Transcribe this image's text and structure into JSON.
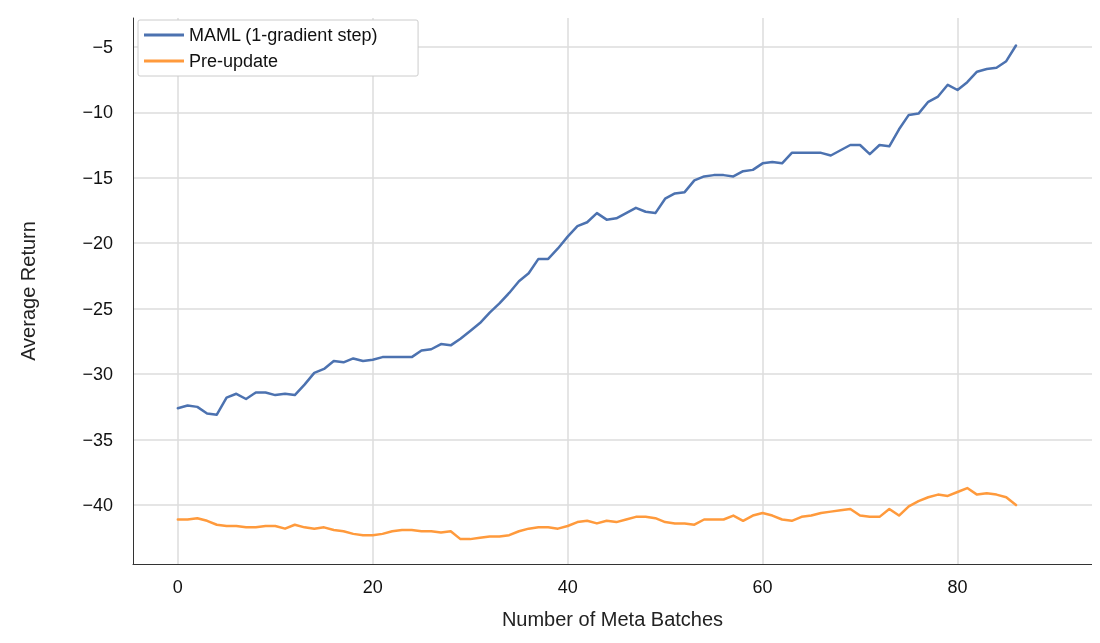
{
  "chart_data": {
    "type": "line",
    "xlabel": "Number of Meta Batches",
    "ylabel": "Average Return",
    "x": [
      0,
      1,
      2,
      3,
      4,
      5,
      6,
      7,
      8,
      9,
      10,
      11,
      12,
      13,
      14,
      15,
      16,
      17,
      18,
      19,
      20,
      21,
      22,
      23,
      24,
      25,
      26,
      27,
      28,
      29,
      30,
      31,
      32,
      33,
      34,
      35,
      36,
      37,
      38,
      39,
      40,
      41,
      42,
      43,
      44,
      45,
      46,
      47,
      48,
      49,
      50,
      51,
      52,
      53,
      54,
      55,
      56,
      57,
      58,
      59,
      60,
      61,
      62,
      63,
      64,
      65,
      66,
      67,
      68,
      69,
      70,
      71,
      72,
      73,
      74,
      75,
      76,
      77,
      78,
      79,
      80,
      81,
      82,
      83,
      84,
      85,
      86
    ],
    "series": [
      {
        "name": "MAML (1-gradient step)",
        "color": "#4c72b0",
        "values": [
          -32.6,
          -32.4,
          -32.5,
          -33.0,
          -33.1,
          -31.8,
          -31.5,
          -31.9,
          -31.4,
          -31.4,
          -31.6,
          -31.5,
          -31.6,
          -30.8,
          -29.9,
          -29.6,
          -29.0,
          -29.1,
          -28.8,
          -29.0,
          -28.9,
          -28.7,
          -28.7,
          -28.7,
          -28.7,
          -28.2,
          -28.1,
          -27.7,
          -27.8,
          -27.3,
          -26.7,
          -26.1,
          -25.3,
          -24.6,
          -23.8,
          -22.9,
          -22.3,
          -21.2,
          -21.2,
          -20.4,
          -19.5,
          -18.7,
          -18.4,
          -17.7,
          -18.2,
          -18.1,
          -17.7,
          -17.3,
          -17.6,
          -17.7,
          -16.6,
          -16.2,
          -16.1,
          -15.2,
          -14.9,
          -14.8,
          -14.8,
          -14.9,
          -14.5,
          -14.4,
          -13.9,
          -13.8,
          -13.9,
          -13.1,
          -13.1,
          -13.1,
          -13.1,
          -13.3,
          -12.9,
          -12.5,
          -12.5,
          -13.2,
          -12.5,
          -12.6,
          -11.3,
          -10.2,
          -10.1,
          -9.2,
          -8.8,
          -7.9,
          -8.3,
          -7.7,
          -6.9,
          -6.7,
          -6.6,
          -6.1,
          -4.9
        ]
      },
      {
        "name": "Pre-update",
        "color": "#ff9a3c",
        "values": [
          -41.1,
          -41.1,
          -41.0,
          -41.2,
          -41.5,
          -41.6,
          -41.6,
          -41.7,
          -41.7,
          -41.6,
          -41.6,
          -41.8,
          -41.5,
          -41.7,
          -41.8,
          -41.7,
          -41.9,
          -42.0,
          -42.2,
          -42.3,
          -42.3,
          -42.2,
          -42.0,
          -41.9,
          -41.9,
          -42.0,
          -42.0,
          -42.1,
          -42.0,
          -42.6,
          -42.6,
          -42.5,
          -42.4,
          -42.4,
          -42.3,
          -42.0,
          -41.8,
          -41.7,
          -41.7,
          -41.8,
          -41.6,
          -41.3,
          -41.2,
          -41.4,
          -41.2,
          -41.3,
          -41.1,
          -40.9,
          -40.9,
          -41.0,
          -41.3,
          -41.4,
          -41.4,
          -41.5,
          -41.1,
          -41.1,
          -41.1,
          -40.8,
          -41.2,
          -40.8,
          -40.6,
          -40.8,
          -41.1,
          -41.2,
          -40.9,
          -40.8,
          -40.6,
          -40.5,
          -40.4,
          -40.3,
          -40.8,
          -40.9,
          -40.9,
          -40.3,
          -40.8,
          -40.1,
          -39.7,
          -39.4,
          -39.2,
          -39.3,
          -39.0,
          -38.7,
          -39.2,
          -39.1,
          -39.2,
          -39.4,
          -40.0
        ]
      }
    ],
    "xlim": [
      -4.6,
      93.8
    ],
    "xticks": [
      0,
      20,
      40,
      60,
      80
    ],
    "ylim": [
      -44.5,
      -2.8
    ],
    "yticks": [
      -40,
      -35,
      -30,
      -25,
      -20,
      -15,
      -10,
      -5
    ],
    "grid": true,
    "legend": "top left",
    "marker": "none",
    "line_style": "solid"
  }
}
